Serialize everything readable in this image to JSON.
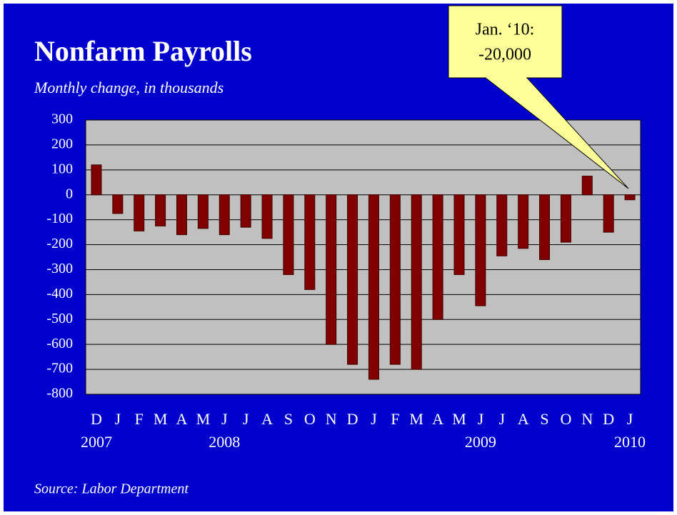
{
  "chart_data": {
    "type": "bar",
    "title": "Nonfarm Payrolls",
    "subtitle": "Monthly change, in thousands",
    "source": "Source:  Labor Department",
    "annotation": [
      "Jan. ‘10:",
      "-20,000"
    ],
    "categories": [
      "D",
      "J",
      "F",
      "M",
      "A",
      "M",
      "J",
      "J",
      "A",
      "S",
      "O",
      "N",
      "D",
      "J",
      "F",
      "M",
      "A",
      "M",
      "J",
      "J",
      "A",
      "S",
      "O",
      "N",
      "D",
      "J"
    ],
    "years": [
      "2007",
      null,
      null,
      null,
      null,
      null,
      "2008",
      null,
      null,
      null,
      null,
      null,
      null,
      null,
      null,
      null,
      null,
      null,
      "2009",
      null,
      null,
      null,
      null,
      null,
      null,
      "2010"
    ],
    "values": [
      120,
      -75,
      -145,
      -125,
      -160,
      -135,
      -160,
      -130,
      -175,
      -320,
      -380,
      -600,
      -680,
      -740,
      -680,
      -700,
      -500,
      -320,
      -445,
      -245,
      -215,
      -260,
      -190,
      75,
      -150,
      -20
    ],
    "color": "#800000",
    "ylim": [
      -800,
      300
    ],
    "yticks": [
      300,
      200,
      100,
      0,
      -100,
      -200,
      -300,
      -400,
      -500,
      -600,
      -700,
      -800
    ],
    "grid": true
  }
}
